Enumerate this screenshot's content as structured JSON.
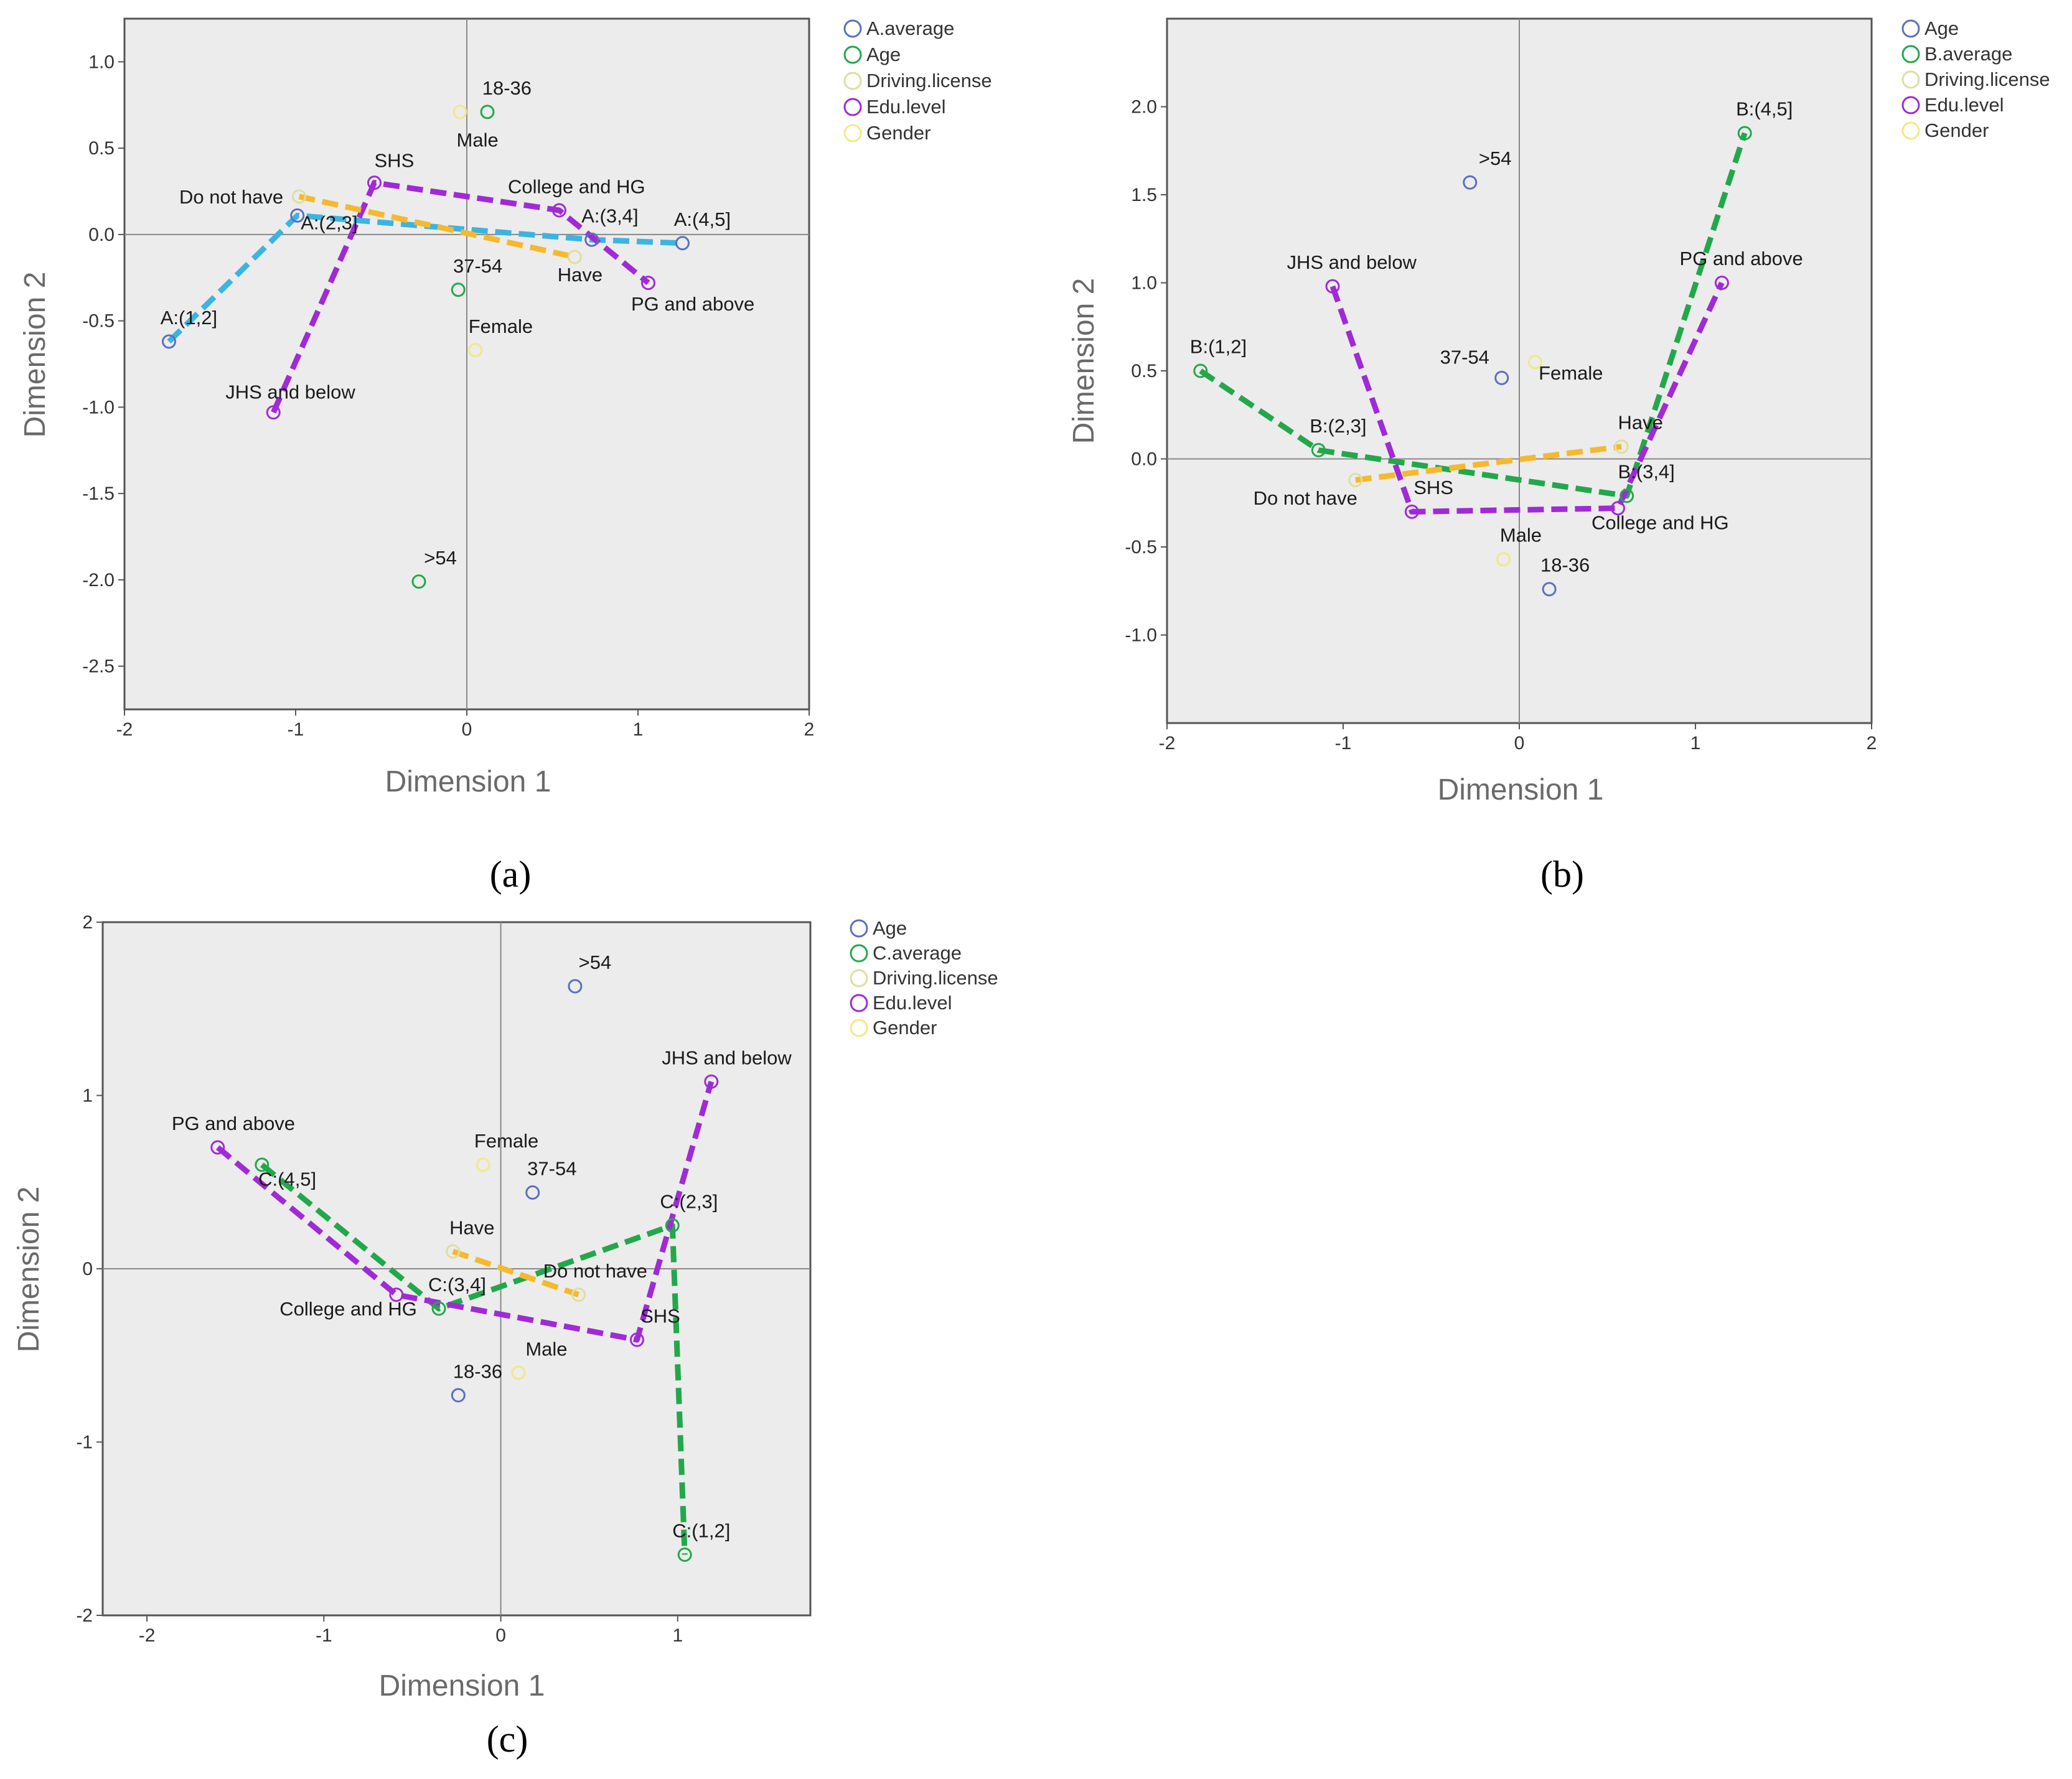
{
  "colors": {
    "plot_background": "#ececec",
    "axis_line": "#888888",
    "blue": "#5b6fbf",
    "green": "#22a84a",
    "lightyellow": "#dedea0",
    "purple": "#a02ad6",
    "yellow": "#f2e886",
    "cyan": "#3cb4e2",
    "orange": "#f6b92e",
    "purple_line": "#a02ad6",
    "green_line": "#22a84a"
  },
  "chart_data": [
    {
      "type": "scatter",
      "panel": "a",
      "caption": "(a)",
      "xlabel": "Dimension 1",
      "ylabel": "Dimension 2",
      "xlim": [
        -2,
        2
      ],
      "ylim": [
        -2.75,
        1.25
      ],
      "xticks": [
        {
          "v": -2,
          "label": "-2"
        },
        {
          "v": -1,
          "label": "-1"
        },
        {
          "v": 0,
          "label": "0"
        },
        {
          "v": 1,
          "label": "1"
        },
        {
          "v": 2,
          "label": "2"
        }
      ],
      "yticks": [
        {
          "v": 1.0,
          "label": "1.0"
        },
        {
          "v": 0.5,
          "label": "0.5"
        },
        {
          "v": 0.0,
          "label": "0.0"
        },
        {
          "v": -0.5,
          "label": "-0.5"
        },
        {
          "v": -1.0,
          "label": "-1.0"
        },
        {
          "v": -1.5,
          "label": "-1.5"
        },
        {
          "v": -2.0,
          "label": "-2.0"
        },
        {
          "v": -2.5,
          "label": "-2.5"
        }
      ],
      "legend": [
        {
          "label": "A.average",
          "color": "blue"
        },
        {
          "label": "Age",
          "color": "green"
        },
        {
          "label": "Driving.license",
          "color": "lightyellow"
        },
        {
          "label": "Edu.level",
          "color": "purple"
        },
        {
          "label": "Gender",
          "color": "yellow"
        }
      ],
      "points": [
        {
          "label": "A:(1,2]",
          "x": -1.74,
          "y": -0.62,
          "color": "blue",
          "ldx": -0.05,
          "ldy": 0.1
        },
        {
          "label": "A:(2,3]",
          "x": -0.99,
          "y": 0.11,
          "color": "blue",
          "ldx": 0.02,
          "ldy": -0.08
        },
        {
          "label": "A:(3,4]",
          "x": 0.73,
          "y": -0.03,
          "color": "blue",
          "ldx": -0.06,
          "ldy": 0.1
        },
        {
          "label": "A:(4,5]",
          "x": 1.26,
          "y": -0.05,
          "color": "blue",
          "ldx": -0.05,
          "ldy": 0.1
        },
        {
          "label": "18-36",
          "x": 0.12,
          "y": 0.71,
          "color": "green",
          "ldx": -0.03,
          "ldy": 0.1
        },
        {
          "label": "37-54",
          "x": -0.05,
          "y": -0.32,
          "color": "green",
          "ldx": -0.03,
          "ldy": 0.1
        },
        {
          "label": ">54",
          "x": -0.28,
          "y": -2.01,
          "color": "green",
          "ldx": 0.03,
          "ldy": 0.1
        },
        {
          "label": "Do not have",
          "x": -0.98,
          "y": 0.22,
          "color": "lightyellow",
          "ldx": -0.7,
          "ldy": -0.04
        },
        {
          "label": "Have",
          "x": 0.63,
          "y": -0.13,
          "color": "lightyellow",
          "ldx": -0.1,
          "ldy": -0.14
        },
        {
          "label": "SHS",
          "x": -0.54,
          "y": 0.3,
          "color": "purple",
          "ldx": 0.0,
          "ldy": 0.09
        },
        {
          "label": "College and HG",
          "x": 0.54,
          "y": 0.14,
          "color": "purple",
          "ldx": -0.3,
          "ldy": 0.1
        },
        {
          "label": "PG and above",
          "x": 1.06,
          "y": -0.28,
          "color": "purple",
          "ldx": -0.1,
          "ldy": -0.16
        },
        {
          "label": "JHS and below",
          "x": -1.13,
          "y": -1.03,
          "color": "purple",
          "ldx": -0.28,
          "ldy": 0.08
        },
        {
          "label": "Male",
          "x": -0.04,
          "y": 0.71,
          "color": "yellow",
          "ldx": -0.02,
          "ldy": -0.2
        },
        {
          "label": "Female",
          "x": 0.05,
          "y": -0.67,
          "color": "yellow",
          "ldx": -0.04,
          "ldy": 0.1
        }
      ],
      "lines": [
        {
          "color": "cyan",
          "points": [
            [
              -1.74,
              -0.62
            ],
            [
              -0.99,
              0.11
            ],
            [
              0.73,
              -0.03
            ],
            [
              1.26,
              -0.05
            ]
          ]
        },
        {
          "color": "purple_line",
          "points": [
            [
              -1.13,
              -1.03
            ],
            [
              -0.54,
              0.3
            ],
            [
              0.54,
              0.14
            ],
            [
              1.06,
              -0.28
            ]
          ]
        },
        {
          "color": "orange",
          "points": [
            [
              -0.98,
              0.22
            ],
            [
              0.63,
              -0.13
            ]
          ]
        }
      ]
    },
    {
      "type": "scatter",
      "panel": "b",
      "caption": "(b)",
      "xlabel": "Dimension 1",
      "ylabel": "Dimension 2",
      "xlim": [
        -2,
        2
      ],
      "ylim": [
        -1.5,
        2.5
      ],
      "xticks": [
        {
          "v": -2,
          "label": "-2"
        },
        {
          "v": -1,
          "label": "-1"
        },
        {
          "v": 0,
          "label": "0"
        },
        {
          "v": 1,
          "label": "1"
        },
        {
          "v": 2,
          "label": "2"
        }
      ],
      "yticks": [
        {
          "v": 2.0,
          "label": "2.0"
        },
        {
          "v": 1.5,
          "label": "1.5"
        },
        {
          "v": 1.0,
          "label": "1.0"
        },
        {
          "v": 0.5,
          "label": "0.5"
        },
        {
          "v": 0.0,
          "label": "0.0"
        },
        {
          "v": -0.5,
          "label": "-0.5"
        },
        {
          "v": -1.0,
          "label": "-1.0"
        }
      ],
      "legend": [
        {
          "label": "Age",
          "color": "blue"
        },
        {
          "label": "B.average",
          "color": "green"
        },
        {
          "label": "Driving.license",
          "color": "lightyellow"
        },
        {
          "label": "Edu.level",
          "color": "purple"
        },
        {
          "label": "Gender",
          "color": "yellow"
        }
      ],
      "points": [
        {
          "label": ">54",
          "x": -0.28,
          "y": 1.57,
          "color": "blue",
          "ldx": 0.05,
          "ldy": 0.1
        },
        {
          "label": "37-54",
          "x": -0.1,
          "y": 0.46,
          "color": "blue",
          "ldx": -0.35,
          "ldy": 0.08
        },
        {
          "label": "18-36",
          "x": 0.17,
          "y": -0.74,
          "color": "blue",
          "ldx": -0.05,
          "ldy": 0.1
        },
        {
          "label": "B:(1,2]",
          "x": -1.81,
          "y": 0.5,
          "color": "green",
          "ldx": -0.06,
          "ldy": 0.1
        },
        {
          "label": "B:(2,3]",
          "x": -1.14,
          "y": 0.05,
          "color": "green",
          "ldx": -0.05,
          "ldy": 0.1
        },
        {
          "label": "B:(3,4]",
          "x": 0.61,
          "y": -0.21,
          "color": "green",
          "ldx": -0.05,
          "ldy": 0.1
        },
        {
          "label": "B:(4,5]",
          "x": 1.28,
          "y": 1.85,
          "color": "green",
          "ldx": -0.05,
          "ldy": 0.1
        },
        {
          "label": "Do not have",
          "x": -0.93,
          "y": -0.12,
          "color": "lightyellow",
          "ldx": -0.58,
          "ldy": -0.14
        },
        {
          "label": "Have",
          "x": 0.58,
          "y": 0.07,
          "color": "lightyellow",
          "ldx": -0.02,
          "ldy": 0.1
        },
        {
          "label": "JHS and below",
          "x": -1.06,
          "y": 0.98,
          "color": "purple",
          "ldx": -0.26,
          "ldy": 0.1
        },
        {
          "label": "SHS",
          "x": -0.61,
          "y": -0.3,
          "color": "purple",
          "ldx": 0.01,
          "ldy": 0.1
        },
        {
          "label": "College and HG",
          "x": 0.56,
          "y": -0.28,
          "color": "purple",
          "ldx": -0.15,
          "ldy": -0.12
        },
        {
          "label": "PG and above",
          "x": 1.15,
          "y": 1.0,
          "color": "purple",
          "ldx": -0.24,
          "ldy": 0.1
        },
        {
          "label": "Male",
          "x": -0.09,
          "y": -0.57,
          "color": "yellow",
          "ldx": -0.02,
          "ldy": 0.1
        },
        {
          "label": "Female",
          "x": 0.09,
          "y": 0.55,
          "color": "yellow",
          "ldx": 0.02,
          "ldy": -0.1
        }
      ],
      "lines": [
        {
          "color": "green_line",
          "points": [
            [
              -1.81,
              0.5
            ],
            [
              -1.14,
              0.05
            ],
            [
              0.61,
              -0.21
            ],
            [
              1.28,
              1.85
            ]
          ]
        },
        {
          "color": "purple_line",
          "points": [
            [
              -1.06,
              0.98
            ],
            [
              -0.61,
              -0.3
            ],
            [
              0.56,
              -0.28
            ],
            [
              1.15,
              1.0
            ]
          ]
        },
        {
          "color": "orange",
          "points": [
            [
              -0.93,
              -0.12
            ],
            [
              0.58,
              0.07
            ]
          ]
        }
      ]
    },
    {
      "type": "scatter",
      "panel": "c",
      "caption": "(c)",
      "xlabel": "Dimension 1",
      "ylabel": "Dimension 2",
      "xlim": [
        -2.25,
        1.75
      ],
      "ylim": [
        -2,
        2
      ],
      "xticks": [
        {
          "v": -2,
          "label": "-2"
        },
        {
          "v": -1,
          "label": "-1"
        },
        {
          "v": 0,
          "label": "0"
        },
        {
          "v": 1,
          "label": "1"
        }
      ],
      "yticks": [
        {
          "v": 2,
          "label": "2"
        },
        {
          "v": 1,
          "label": "1"
        },
        {
          "v": 0,
          "label": "0"
        },
        {
          "v": -1,
          "label": "-1"
        },
        {
          "v": -2,
          "label": "-2"
        }
      ],
      "legend": [
        {
          "label": "Age",
          "color": "blue"
        },
        {
          "label": "C.average",
          "color": "green"
        },
        {
          "label": "Driving.license",
          "color": "lightyellow"
        },
        {
          "label": "Edu.level",
          "color": "purple"
        },
        {
          "label": "Gender",
          "color": "yellow"
        }
      ],
      "points": [
        {
          "label": ">54",
          "x": 0.42,
          "y": 1.63,
          "color": "blue",
          "ldx": 0.02,
          "ldy": 0.1
        },
        {
          "label": "37-54",
          "x": 0.18,
          "y": 0.44,
          "color": "blue",
          "ldx": -0.03,
          "ldy": 0.1
        },
        {
          "label": "18-36",
          "x": -0.24,
          "y": -0.73,
          "color": "blue",
          "ldx": -0.03,
          "ldy": 0.1
        },
        {
          "label": "C:(4,5]",
          "x": -1.35,
          "y": 0.6,
          "color": "green",
          "ldx": -0.02,
          "ldy": -0.12
        },
        {
          "label": "C:(3,4]",
          "x": -0.35,
          "y": -0.23,
          "color": "green",
          "ldx": -0.06,
          "ldy": 0.1
        },
        {
          "label": "C:(2,3]",
          "x": 0.97,
          "y": 0.25,
          "color": "green",
          "ldx": -0.07,
          "ldy": 0.1
        },
        {
          "label": "C:(1,2]",
          "x": 1.04,
          "y": -1.65,
          "color": "green",
          "ldx": -0.07,
          "ldy": 0.1
        },
        {
          "label": "Have",
          "x": -0.27,
          "y": 0.1,
          "color": "lightyellow",
          "ldx": -0.02,
          "ldy": 0.1
        },
        {
          "label": "Do not have",
          "x": 0.44,
          "y": -0.15,
          "color": "lightyellow",
          "ldx": -0.2,
          "ldy": 0.1
        },
        {
          "label": "PG and above",
          "x": -1.6,
          "y": 0.7,
          "color": "purple",
          "ldx": -0.26,
          "ldy": 0.1
        },
        {
          "label": "College and HG",
          "x": -0.59,
          "y": -0.15,
          "color": "purple",
          "ldx": -0.66,
          "ldy": -0.12
        },
        {
          "label": "SHS",
          "x": 0.77,
          "y": -0.41,
          "color": "purple",
          "ldx": 0.02,
          "ldy": 0.1
        },
        {
          "label": "JHS and below",
          "x": 1.19,
          "y": 1.08,
          "color": "purple",
          "ldx": -0.28,
          "ldy": 0.1
        },
        {
          "label": "Male",
          "x": 0.1,
          "y": -0.6,
          "color": "yellow",
          "ldx": 0.04,
          "ldy": 0.1
        },
        {
          "label": "Female",
          "x": -0.1,
          "y": 0.6,
          "color": "yellow",
          "ldx": -0.05,
          "ldy": 0.1
        }
      ],
      "lines": [
        {
          "color": "green_line",
          "points": [
            [
              -1.35,
              0.6
            ],
            [
              -0.35,
              -0.23
            ],
            [
              0.97,
              0.25
            ],
            [
              1.04,
              -1.65
            ]
          ]
        },
        {
          "color": "purple_line",
          "points": [
            [
              -1.6,
              0.7
            ],
            [
              -0.59,
              -0.15
            ],
            [
              0.77,
              -0.41
            ],
            [
              1.19,
              1.08
            ]
          ]
        },
        {
          "color": "orange",
          "points": [
            [
              -0.27,
              0.1
            ],
            [
              0.44,
              -0.15
            ]
          ]
        }
      ]
    }
  ]
}
